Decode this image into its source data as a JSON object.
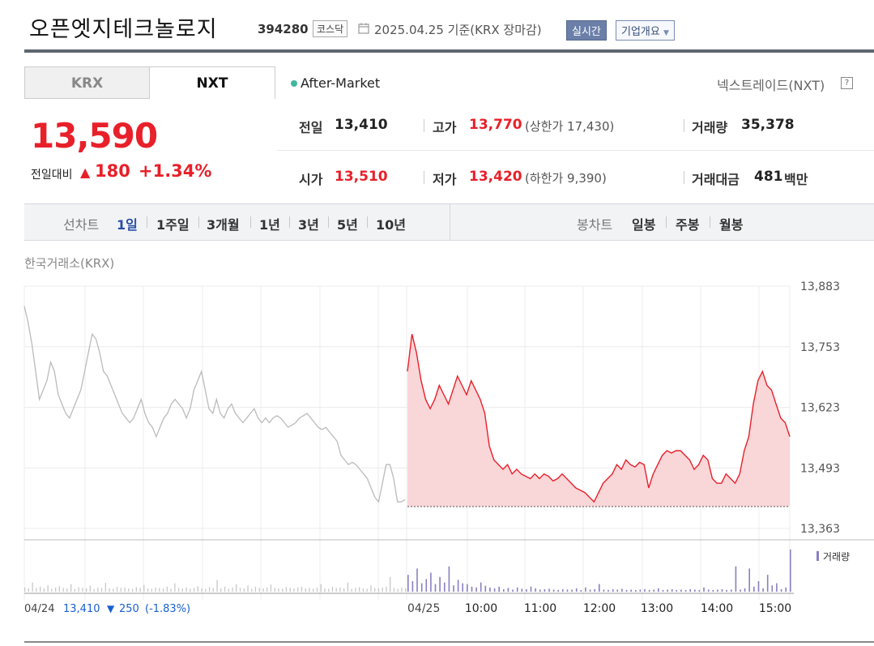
{
  "header": {
    "company": "오픈엣지테크놀로지",
    "code": "394280",
    "market": "코스닥",
    "date": "2025.04.25 기준(KRX 장마감)",
    "live": "실시간",
    "corp_info": "기업개요"
  },
  "tabs": [
    "KRX",
    "NXT"
  ],
  "session": "After-Market",
  "nxt_link": "넥스트레이드(NXT)",
  "help_icon": "?",
  "price": {
    "current": "13,590",
    "change_label": "전일대비",
    "change": "180",
    "change_pct": "+1.34%"
  },
  "stats": {
    "prev_label": "전일",
    "prev": "13,410",
    "high_label": "고가",
    "high": "13,770",
    "upper_limit": "(상한가 17,430)",
    "volume_label": "거래량",
    "volume": "35,378",
    "open_label": "시가",
    "open": "13,510",
    "low_label": "저가",
    "low": "13,420",
    "lower_limit": "(하한가 9,390)",
    "amount_label": "거래대금",
    "amount": "481",
    "amount_unit": "백만"
  },
  "periods": {
    "line_label": "선차트",
    "line": [
      "1일",
      "1주일",
      "3개월",
      "1년",
      "3년",
      "5년",
      "10년"
    ],
    "candle_label": "봉차트",
    "candle": [
      "일봉",
      "주봉",
      "월봉"
    ]
  },
  "source": "한국거래소(KRX)",
  "colors": {
    "up": "#e8202a",
    "down": "#1a5fd0",
    "prev_day": "#bbbbbb"
  },
  "chart_data": {
    "type": "line",
    "title": "",
    "y_ticks": [
      "13,883",
      "13,753",
      "13,623",
      "13,493",
      "13,363"
    ],
    "ylim": [
      13363,
      13883
    ],
    "baseline": 13410,
    "x_labels": [
      "04/24",
      "04/25",
      "10:00",
      "11:00",
      "12:00",
      "13:00",
      "14:00",
      "15:00"
    ],
    "prev_summary": {
      "date": "04/24",
      "close": "13,410",
      "change": "250",
      "change_pct": "(-1.83%)"
    },
    "volume_legend": "거래량",
    "series": [
      {
        "date": "04/24",
        "values": [
          13840,
          13805,
          13760,
          13700,
          13640,
          13660,
          13680,
          13720,
          13700,
          13650,
          13630,
          13610,
          13600,
          13620,
          13640,
          13660,
          13700,
          13740,
          13780,
          13770,
          13740,
          13700,
          13690,
          13670,
          13650,
          13630,
          13610,
          13600,
          13590,
          13600,
          13620,
          13640,
          13610,
          13590,
          13580,
          13560,
          13580,
          13600,
          13610,
          13630,
          13640,
          13630,
          13620,
          13600,
          13620,
          13660,
          13680,
          13700,
          13660,
          13620,
          13610,
          13640,
          13610,
          13600,
          13620,
          13630,
          13610,
          13600,
          13590,
          13600,
          13610,
          13620,
          13600,
          13590,
          13600,
          13590,
          13600,
          13605,
          13600,
          13590,
          13580,
          13585,
          13590,
          13600,
          13605,
          13610,
          13600,
          13590,
          13580,
          13575,
          13580,
          13570,
          13560,
          13550,
          13520,
          13510,
          13500,
          13505,
          13500,
          13490,
          13480,
          13470,
          13450,
          13430,
          13420,
          13460,
          13500,
          13500,
          13470,
          13420,
          13420,
          13425
        ]
      },
      {
        "date": "04/25",
        "values": [
          13700,
          13780,
          13740,
          13680,
          13640,
          13620,
          13640,
          13670,
          13650,
          13630,
          13660,
          13690,
          13670,
          13650,
          13680,
          13660,
          13640,
          13610,
          13540,
          13510,
          13500,
          13490,
          13500,
          13480,
          13490,
          13480,
          13475,
          13470,
          13480,
          13470,
          13480,
          13475,
          13465,
          13470,
          13480,
          13470,
          13460,
          13450,
          13445,
          13440,
          13430,
          13420,
          13440,
          13460,
          13470,
          13480,
          13500,
          13490,
          13510,
          13500,
          13495,
          13505,
          13500,
          13450,
          13480,
          13500,
          13520,
          13530,
          13525,
          13530,
          13530,
          13520,
          13510,
          13490,
          13500,
          13520,
          13510,
          13470,
          13460,
          13460,
          13480,
          13470,
          13460,
          13480,
          13530,
          13560,
          13630,
          13680,
          13700,
          13670,
          13660,
          13630,
          13600,
          13590,
          13560
        ]
      }
    ],
    "volume": {
      "prev_day": [
        0.1,
        0.08,
        0.22,
        0.09,
        0.12,
        0.08,
        0.15,
        0.07,
        0.1,
        0.13,
        0.09,
        0.08,
        0.18,
        0.07,
        0.11,
        0.09,
        0.08,
        0.14,
        0.07,
        0.1,
        0.09,
        0.21,
        0.08,
        0.07,
        0.12,
        0.09,
        0.1,
        0.08,
        0.07,
        0.11,
        0.09,
        0.16,
        0.08,
        0.07,
        0.1,
        0.09,
        0.08,
        0.12,
        0.07,
        0.2,
        0.09,
        0.08,
        0.1,
        0.07,
        0.09,
        0.13,
        0.08,
        0.07,
        0.11,
        0.09,
        0.28,
        0.08,
        0.12,
        0.07,
        0.1,
        0.18,
        0.09,
        0.08,
        0.15,
        0.07,
        0.12,
        0.09,
        0.08,
        0.1,
        0.17,
        0.09,
        0.08,
        0.07,
        0.11,
        0.09,
        0.08,
        0.1,
        0.12,
        0.08,
        0.09,
        0.07,
        0.1,
        0.18,
        0.08,
        0.07,
        0.12,
        0.09,
        0.1,
        0.08,
        0.22,
        0.07,
        0.09,
        0.11,
        0.08,
        0.07,
        0.15,
        0.09,
        0.08,
        0.1,
        0.12,
        0.35,
        0.09,
        0.07,
        0.1,
        0.08
      ],
      "today": [
        0.4,
        0.25,
        0.55,
        0.2,
        0.3,
        0.45,
        0.18,
        0.35,
        0.22,
        0.6,
        0.15,
        0.28,
        0.2,
        0.18,
        0.12,
        0.1,
        0.22,
        0.14,
        0.1,
        0.08,
        0.12,
        0.06,
        0.09,
        0.05,
        0.1,
        0.07,
        0.06,
        0.12,
        0.08,
        0.05,
        0.06,
        0.07,
        0.05,
        0.04,
        0.06,
        0.05,
        0.05,
        0.08,
        0.04,
        0.1,
        0.05,
        0.06,
        0.18,
        0.05,
        0.04,
        0.06,
        0.05,
        0.07,
        0.04,
        0.05,
        0.04,
        0.05,
        0.06,
        0.04,
        0.05,
        0.08,
        0.04,
        0.05,
        0.06,
        0.04,
        0.05,
        0.04,
        0.06,
        0.05,
        0.04,
        0.1,
        0.05,
        0.04,
        0.05,
        0.06,
        0.04,
        0.05,
        0.6,
        0.05,
        0.08,
        0.55,
        0.12,
        0.25,
        0.08,
        0.4,
        0.15,
        0.2,
        0.06,
        0.1,
        1.0
      ]
    }
  }
}
